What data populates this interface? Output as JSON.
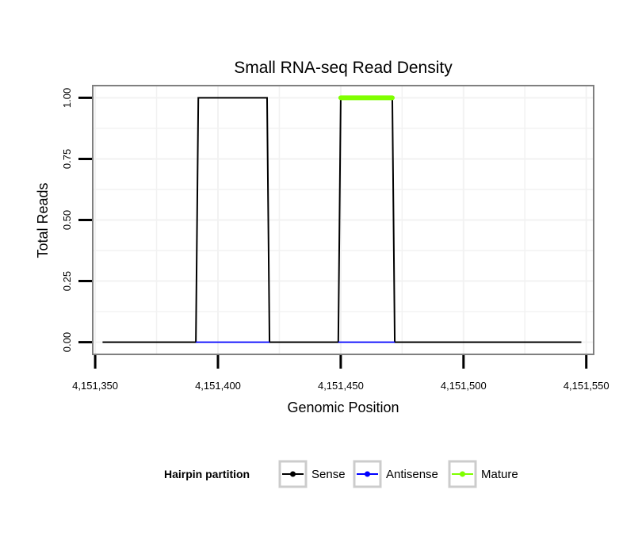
{
  "chart_data": {
    "type": "line",
    "title": "Small RNA-seq Read Density",
    "xlabel": "Genomic Position",
    "ylabel": "Total Reads",
    "xlim": [
      4151349,
      4151553
    ],
    "ylim": [
      -0.05,
      1.05
    ],
    "x_ticks": [
      4151350,
      4151400,
      4151450,
      4151500,
      4151550
    ],
    "x_tick_labels": [
      "4,151,350",
      "4,151,400",
      "4,151,450",
      "4,151,500",
      "4,151,550"
    ],
    "y_ticks": [
      0,
      0.25,
      0.5,
      0.75,
      1
    ],
    "y_tick_labels": [
      "0.00",
      "0.25",
      "0.50",
      "0.75",
      "1.00"
    ],
    "grid": true,
    "legend": {
      "title": "Hairpin partition",
      "position": "bottom",
      "entries": [
        {
          "label": "Sense",
          "color": "#000000"
        },
        {
          "label": "Antisense",
          "color": "#0000ff"
        },
        {
          "label": "Mature",
          "color": "#7fff00"
        }
      ]
    },
    "series": [
      {
        "name": "Sense",
        "color": "#000000",
        "x": [
          4151353,
          4151391,
          4151392,
          4151420,
          4151421,
          4151449,
          4151450,
          4151471,
          4151472,
          4151548
        ],
        "y": [
          0,
          0,
          1,
          1,
          0,
          0,
          1,
          1,
          0,
          0
        ]
      },
      {
        "name": "Antisense",
        "color": "#0000ff",
        "x": [
          4151391,
          4151421,
          4151449,
          4151472
        ],
        "y": [
          0,
          0,
          0,
          0
        ],
        "segments": [
          [
            0,
            1
          ],
          [
            2,
            3
          ]
        ]
      },
      {
        "name": "Mature",
        "color": "#7fff00",
        "x": [
          4151450,
          4151471
        ],
        "y": [
          1,
          1
        ]
      }
    ]
  }
}
